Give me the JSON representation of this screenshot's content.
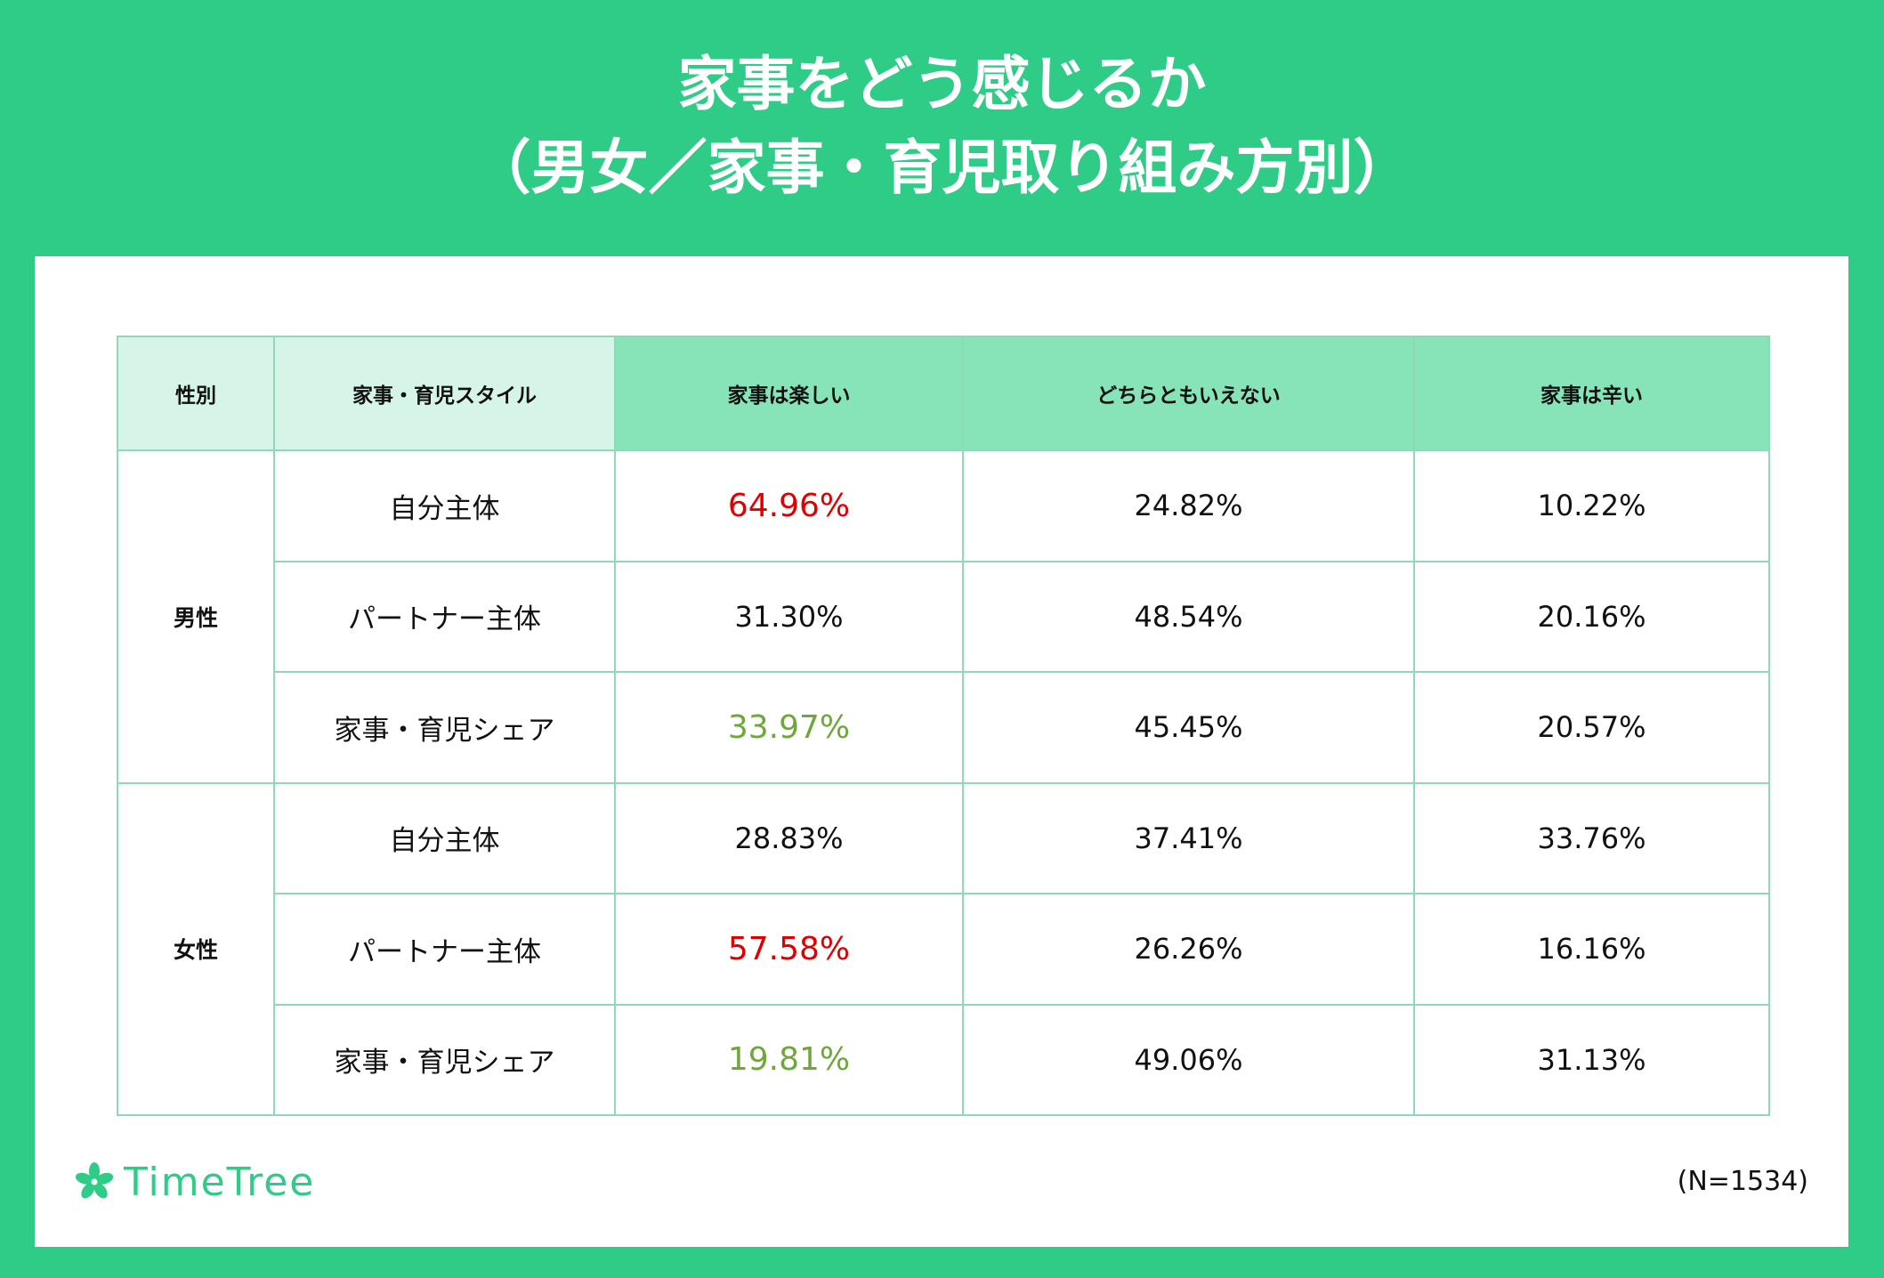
{
  "title": {
    "line1": "家事をどう感じるか",
    "line2": "（男女／家事・育児取り組み方別）"
  },
  "table": {
    "headers": [
      "性別",
      "家事・育児スタイル",
      "家事は楽しい",
      "どちらともいえない",
      "家事は辛い"
    ],
    "groups": [
      {
        "gender": "男性",
        "rows": [
          {
            "style": "自分主体",
            "values": [
              "64.96%",
              "24.82%",
              "10.22%"
            ]
          },
          {
            "style": "パートナー主体",
            "values": [
              "31.30%",
              "48.54%",
              "20.16%"
            ]
          },
          {
            "style": "家事・育児シェア",
            "values": [
              "33.97%",
              "45.45%",
              "20.57%"
            ]
          }
        ]
      },
      {
        "gender": "女性",
        "rows": [
          {
            "style": "自分主体",
            "values": [
              "28.83%",
              "37.41%",
              "33.76%"
            ]
          },
          {
            "style": "パートナー主体",
            "values": [
              "57.58%",
              "26.26%",
              "16.16%"
            ]
          },
          {
            "style": "家事・育児シェア",
            "values": [
              "19.81%",
              "49.06%",
              "31.13%"
            ]
          }
        ]
      }
    ]
  },
  "highlight_colors": {
    "high": "#e00000",
    "low": "#6fa83a"
  },
  "logo": {
    "text": "TimeTree",
    "icon": "clover-icon"
  },
  "note": "(N=1534)",
  "chart_data": {
    "type": "table",
    "title": "家事をどう感じるか（男女／家事・育児取り組み方別）",
    "columns": [
      "性別",
      "家事・育児スタイル",
      "家事は楽しい",
      "どちらともいえない",
      "家事は辛い"
    ],
    "rows": [
      [
        "男性",
        "自分主体",
        64.96,
        24.82,
        10.22
      ],
      [
        "男性",
        "パートナー主体",
        31.3,
        48.54,
        20.16
      ],
      [
        "男性",
        "家事・育児シェア",
        33.97,
        45.45,
        20.57
      ],
      [
        "女性",
        "自分主体",
        28.83,
        37.41,
        33.76
      ],
      [
        "女性",
        "パートナー主体",
        57.58,
        26.26,
        16.16
      ],
      [
        "女性",
        "家事・育児シェア",
        19.81,
        49.06,
        31.13
      ]
    ],
    "unit": "%",
    "highlights": [
      {
        "gender": "男性",
        "style": "自分主体",
        "column": "家事は楽しい",
        "color": "#e00000"
      },
      {
        "gender": "男性",
        "style": "家事・育児シェア",
        "column": "家事は楽しい",
        "color": "#6fa83a"
      },
      {
        "gender": "女性",
        "style": "パートナー主体",
        "column": "家事は楽しい",
        "color": "#e00000"
      },
      {
        "gender": "女性",
        "style": "家事・育児シェア",
        "column": "家事は楽しい",
        "color": "#6fa83a"
      }
    ]
  }
}
